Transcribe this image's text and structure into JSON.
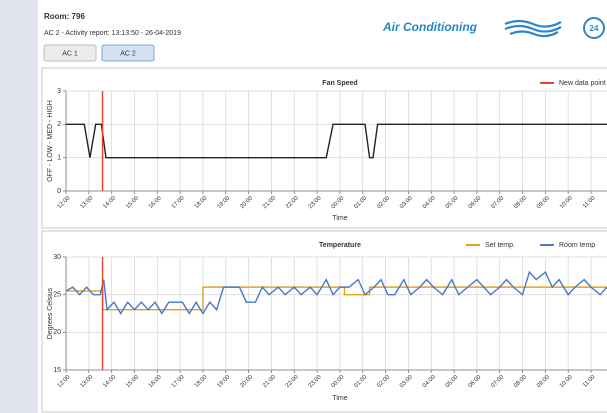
{
  "header": {
    "room": "Room: 796",
    "report": "AC 2 - Activity report: 13:13:50 - 26-04-2019",
    "tabs": [
      "AC 1",
      "AC 2"
    ],
    "active_tab": 1,
    "logo": "Air Conditioning",
    "logo_badge": "24"
  },
  "chart_data": [
    {
      "type": "line",
      "title": "Fan Speed",
      "xlabel": "Time",
      "ylabel": "OFF - LOW - MED - HIGH",
      "xlim": [
        0,
        23.7
      ],
      "xticks": [
        {
          "value": 0,
          "label": "12:00"
        },
        {
          "value": 1,
          "label": "13:00"
        },
        {
          "value": 2,
          "label": "14:00"
        },
        {
          "value": 3,
          "label": "15:00"
        },
        {
          "value": 4,
          "label": "16:00"
        },
        {
          "value": 5,
          "label": "17:00"
        },
        {
          "value": 6,
          "label": "18:00"
        },
        {
          "value": 7,
          "label": "19:00"
        },
        {
          "value": 8,
          "label": "20:00"
        },
        {
          "value": 9,
          "label": "21:00"
        },
        {
          "value": 10,
          "label": "22:00"
        },
        {
          "value": 11,
          "label": "23:00"
        },
        {
          "value": 12,
          "label": "00:00"
        },
        {
          "value": 13,
          "label": "01:00"
        },
        {
          "value": 14,
          "label": "02:00"
        },
        {
          "value": 15,
          "label": "03:00"
        },
        {
          "value": 16,
          "label": "04:00"
        },
        {
          "value": 17,
          "label": "05:00"
        },
        {
          "value": 18,
          "label": "06:00"
        },
        {
          "value": 19,
          "label": "07:00"
        },
        {
          "value": 20,
          "label": "08:00"
        },
        {
          "value": 21,
          "label": "09:00"
        },
        {
          "value": 22,
          "label": "10:00"
        },
        {
          "value": 23,
          "label": "11:00"
        }
      ],
      "ylim": [
        0,
        3
      ],
      "yticks": [
        0,
        1,
        2,
        3
      ],
      "grid": true,
      "legend": "upper right",
      "events": [
        {
          "name": "New data point",
          "color": "#e8412c",
          "x": 1.6
        }
      ],
      "series": [
        {
          "color": "#222222",
          "x": [
            0,
            0.8,
            1.05,
            1.3,
            1.55,
            1.75,
            11.4,
            11.7,
            13.1,
            13.3,
            13.45,
            13.65,
            23.7
          ],
          "values": [
            2,
            2,
            1,
            2,
            2,
            1,
            1,
            2,
            2,
            1,
            1,
            2,
            2
          ]
        }
      ]
    },
    {
      "type": "line",
      "title": "Temperature",
      "xlabel": "Time",
      "ylabel": "Degrees Celsius",
      "xlim": [
        0,
        23.7
      ],
      "xticks": [
        {
          "value": 0,
          "label": "12:00"
        },
        {
          "value": 1,
          "label": "13:00"
        },
        {
          "value": 2,
          "label": "14:00"
        },
        {
          "value": 3,
          "label": "15:00"
        },
        {
          "value": 4,
          "label": "16:00"
        },
        {
          "value": 5,
          "label": "17:00"
        },
        {
          "value": 6,
          "label": "18:00"
        },
        {
          "value": 7,
          "label": "19:00"
        },
        {
          "value": 8,
          "label": "20:00"
        },
        {
          "value": 9,
          "label": "21:00"
        },
        {
          "value": 10,
          "label": "22:00"
        },
        {
          "value": 11,
          "label": "23:00"
        },
        {
          "value": 12,
          "label": "00:00"
        },
        {
          "value": 13,
          "label": "01:00"
        },
        {
          "value": 14,
          "label": "02:00"
        },
        {
          "value": 15,
          "label": "03:00"
        },
        {
          "value": 16,
          "label": "04:00"
        },
        {
          "value": 17,
          "label": "05:00"
        },
        {
          "value": 18,
          "label": "06:00"
        },
        {
          "value": 19,
          "label": "07:00"
        },
        {
          "value": 20,
          "label": "08:00"
        },
        {
          "value": 21,
          "label": "09:00"
        },
        {
          "value": 22,
          "label": "10:00"
        },
        {
          "value": 23,
          "label": "11:00"
        }
      ],
      "ylim": [
        15,
        30
      ],
      "yticks": [
        15,
        20,
        25,
        30
      ],
      "grid": true,
      "legend": "upper right",
      "events": [
        {
          "color": "#e8412c",
          "x": 1.6
        }
      ],
      "series": [
        {
          "name": "Set temp.",
          "color": "#e0a21b",
          "x": [
            0,
            1.6,
            1.6,
            6,
            6,
            12.2,
            12.2,
            13.3,
            13.3,
            23.7
          ],
          "values": [
            25.5,
            25.5,
            23,
            23,
            26,
            26,
            25,
            25,
            26,
            26
          ]
        },
        {
          "name": "Room temp",
          "color": "#4a78c8",
          "x": [
            0,
            0.3,
            0.6,
            0.9,
            1.2,
            1.5,
            1.65,
            1.8,
            2.1,
            2.4,
            2.7,
            3,
            3.3,
            3.6,
            3.9,
            4.2,
            4.5,
            4.8,
            5.1,
            5.4,
            5.7,
            6,
            6.3,
            6.6,
            6.9,
            7.3,
            7.6,
            7.9,
            8.3,
            8.6,
            8.9,
            9.3,
            9.6,
            10,
            10.3,
            10.7,
            11,
            11.4,
            11.7,
            12,
            12.4,
            12.8,
            13.1,
            13.5,
            13.8,
            14.1,
            14.4,
            14.8,
            15.1,
            15.5,
            15.8,
            16.1,
            16.5,
            16.9,
            17.2,
            17.6,
            18,
            18.3,
            18.6,
            19,
            19.3,
            19.6,
            20,
            20.3,
            20.6,
            21,
            21.3,
            21.6,
            22,
            22.3,
            22.7,
            23,
            23.4,
            23.7
          ],
          "values": [
            25.5,
            26,
            25,
            26,
            25,
            25,
            27,
            23,
            24,
            22.5,
            24,
            23,
            24,
            23,
            24,
            22.5,
            24,
            24,
            24,
            22.5,
            24,
            22.5,
            24,
            23,
            26,
            26,
            26,
            24,
            24,
            26,
            25,
            26,
            25,
            26,
            25,
            26,
            25,
            27,
            25,
            26,
            26,
            27,
            25,
            26,
            27,
            25,
            25,
            27,
            25,
            26,
            27,
            26,
            25,
            27,
            25,
            26,
            27,
            26,
            25,
            26,
            27,
            26,
            25,
            28,
            27,
            28,
            26,
            27,
            25,
            26,
            27,
            26,
            25,
            26
          ]
        }
      ]
    }
  ]
}
